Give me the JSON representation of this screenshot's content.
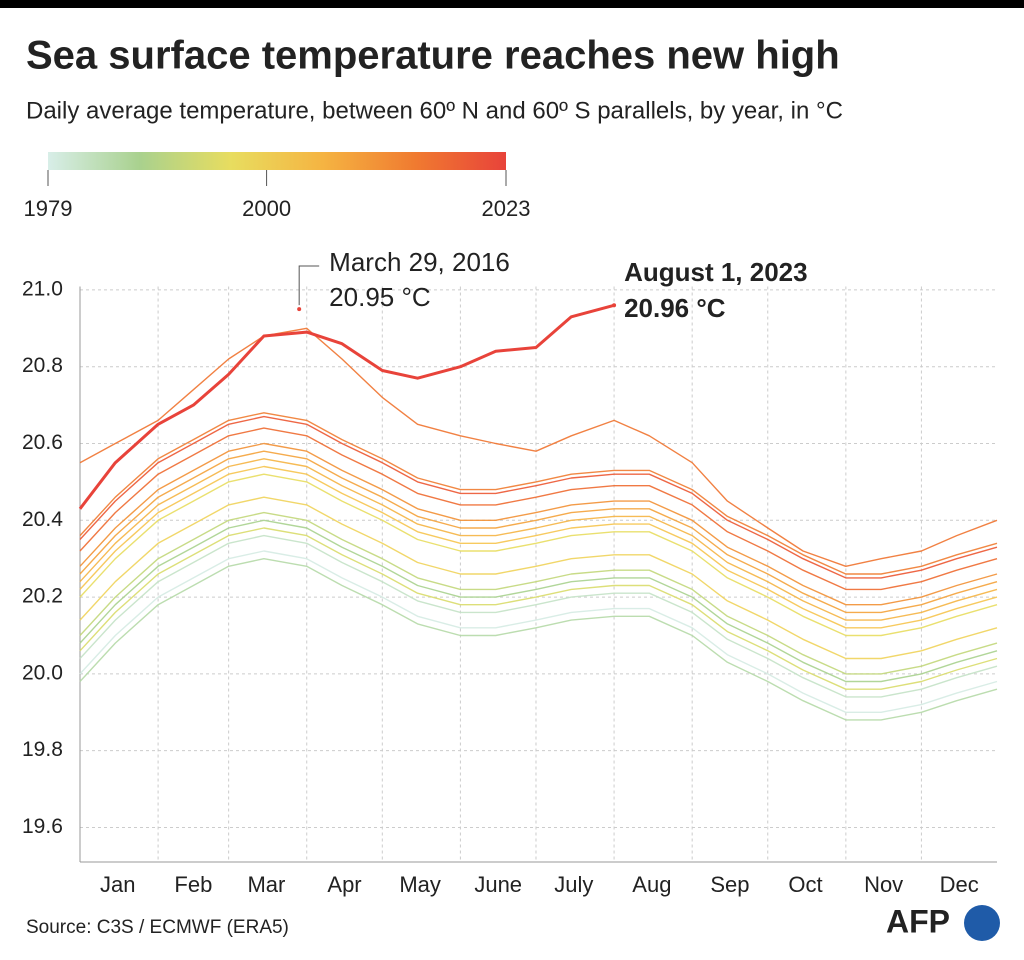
{
  "chart_data": {
    "type": "line",
    "title": "Sea surface temperature reaches new high",
    "subtitle": "Daily average temperature, between 60º N and 60º S parallels, by year, in °C",
    "source": "Source: C3S / ECMWF (ERA5)",
    "logo": "AFP",
    "colorbar": {
      "lim": [
        1979,
        2023
      ],
      "ticks": [
        1979,
        2000,
        2023
      ],
      "colors": [
        "#d8eee8",
        "#a9d18e",
        "#e8dd5f",
        "#f5b442",
        "#f07b30",
        "#e8433a"
      ]
    },
    "xlim": [
      1,
      365
    ],
    "ylim": [
      19.51,
      21.1
    ],
    "yticks": [
      {
        "value": 19.6,
        "label": "19.6"
      },
      {
        "value": 19.8,
        "label": "19.8"
      },
      {
        "value": 20.0,
        "label": "20.0"
      },
      {
        "value": 20.2,
        "label": "20.2"
      },
      {
        "value": 20.4,
        "label": "20.4"
      },
      {
        "value": 20.6,
        "label": "20.6"
      },
      {
        "value": 20.8,
        "label": "20.8"
      },
      {
        "value": 21.0,
        "label": "21.0"
      }
    ],
    "xgrid": [
      32,
      60,
      91,
      121,
      152,
      182,
      213,
      244,
      274,
      305,
      335
    ],
    "month_labels": [
      {
        "value": 16,
        "label": "Jan"
      },
      {
        "value": 46,
        "label": "Feb"
      },
      {
        "value": 75,
        "label": "Mar"
      },
      {
        "value": 106,
        "label": "Apr"
      },
      {
        "value": 136,
        "label": "May"
      },
      {
        "value": 167,
        "label": "June"
      },
      {
        "value": 197,
        "label": "July"
      },
      {
        "value": 228,
        "label": "Aug"
      },
      {
        "value": 259,
        "label": "Sep"
      },
      {
        "value": 289,
        "label": "Oct"
      },
      {
        "value": 320,
        "label": "Nov"
      },
      {
        "value": 350,
        "label": "Dec"
      }
    ],
    "grid": true,
    "x": [
      1,
      15,
      32,
      46,
      60,
      74,
      91,
      105,
      121,
      135,
      152,
      166,
      182,
      196,
      213,
      227,
      244,
      258,
      274,
      288,
      305,
      319,
      335,
      349,
      365
    ],
    "series": [
      {
        "color": "#d5ebe3",
        "values": [
          20.0,
          20.1,
          20.2,
          20.25,
          20.3,
          20.32,
          20.3,
          20.25,
          20.2,
          20.15,
          20.12,
          20.12,
          20.14,
          20.16,
          20.17,
          20.17,
          20.12,
          20.05,
          20.0,
          19.95,
          19.9,
          19.9,
          19.92,
          19.95,
          19.98
        ]
      },
      {
        "color": "#c4e2c6",
        "values": [
          20.04,
          20.14,
          20.24,
          20.29,
          20.34,
          20.36,
          20.34,
          20.29,
          20.24,
          20.19,
          20.16,
          20.16,
          20.18,
          20.2,
          20.21,
          20.21,
          20.16,
          20.09,
          20.04,
          19.99,
          19.94,
          19.94,
          19.96,
          19.99,
          20.02
        ]
      },
      {
        "color": "#b5d9a7",
        "values": [
          19.98,
          20.08,
          20.18,
          20.23,
          20.28,
          20.3,
          20.28,
          20.23,
          20.18,
          20.13,
          20.1,
          20.1,
          20.12,
          20.14,
          20.15,
          20.15,
          20.1,
          20.03,
          19.98,
          19.93,
          19.88,
          19.88,
          19.9,
          19.93,
          19.96
        ]
      },
      {
        "color": "#a9d18e",
        "values": [
          20.08,
          20.18,
          20.28,
          20.33,
          20.38,
          20.4,
          20.38,
          20.33,
          20.28,
          20.23,
          20.2,
          20.2,
          20.22,
          20.24,
          20.25,
          20.25,
          20.2,
          20.13,
          20.08,
          20.03,
          19.98,
          19.98,
          20.0,
          20.03,
          20.06
        ]
      },
      {
        "color": "#c2d77a",
        "values": [
          20.1,
          20.2,
          20.3,
          20.35,
          20.4,
          20.42,
          20.4,
          20.35,
          20.3,
          20.25,
          20.22,
          20.22,
          20.24,
          20.26,
          20.27,
          20.27,
          20.22,
          20.15,
          20.1,
          20.05,
          20.0,
          20.0,
          20.02,
          20.05,
          20.08
        ]
      },
      {
        "color": "#d9dc6a",
        "values": [
          20.06,
          20.16,
          20.26,
          20.31,
          20.36,
          20.38,
          20.36,
          20.31,
          20.26,
          20.21,
          20.18,
          20.18,
          20.2,
          20.22,
          20.23,
          20.23,
          20.18,
          20.11,
          20.06,
          20.01,
          19.96,
          19.96,
          19.98,
          20.01,
          20.04
        ]
      },
      {
        "color": "#e8dd5f",
        "values": [
          20.2,
          20.3,
          20.4,
          20.45,
          20.5,
          20.52,
          20.5,
          20.45,
          20.4,
          20.35,
          20.32,
          20.32,
          20.34,
          20.36,
          20.37,
          20.37,
          20.32,
          20.25,
          20.2,
          20.15,
          20.1,
          20.1,
          20.12,
          20.15,
          20.18
        ]
      },
      {
        "color": "#f0d35a",
        "values": [
          20.14,
          20.24,
          20.34,
          20.39,
          20.44,
          20.46,
          20.44,
          20.39,
          20.34,
          20.29,
          20.26,
          20.26,
          20.28,
          20.3,
          20.31,
          20.31,
          20.26,
          20.19,
          20.14,
          20.09,
          20.04,
          20.04,
          20.06,
          20.09,
          20.12
        ]
      },
      {
        "color": "#f6c44e",
        "values": [
          20.22,
          20.32,
          20.42,
          20.47,
          20.52,
          20.54,
          20.52,
          20.47,
          20.42,
          20.37,
          20.34,
          20.34,
          20.36,
          20.38,
          20.39,
          20.39,
          20.34,
          20.27,
          20.22,
          20.17,
          20.12,
          20.12,
          20.14,
          20.17,
          20.2
        ]
      },
      {
        "color": "#f5b442",
        "values": [
          20.24,
          20.34,
          20.44,
          20.49,
          20.54,
          20.56,
          20.54,
          20.49,
          20.44,
          20.39,
          20.36,
          20.36,
          20.38,
          20.4,
          20.41,
          20.41,
          20.36,
          20.29,
          20.24,
          20.19,
          20.14,
          20.14,
          20.16,
          20.19,
          20.22
        ]
      },
      {
        "color": "#f4a23a",
        "values": [
          20.26,
          20.36,
          20.46,
          20.51,
          20.56,
          20.58,
          20.56,
          20.51,
          20.46,
          20.41,
          20.38,
          20.38,
          20.4,
          20.42,
          20.43,
          20.43,
          20.38,
          20.31,
          20.26,
          20.21,
          20.16,
          20.16,
          20.18,
          20.21,
          20.24
        ]
      },
      {
        "color": "#f29034",
        "values": [
          20.28,
          20.38,
          20.48,
          20.53,
          20.58,
          20.6,
          20.58,
          20.53,
          20.48,
          20.43,
          20.4,
          20.4,
          20.42,
          20.44,
          20.45,
          20.45,
          20.4,
          20.33,
          20.28,
          20.23,
          20.18,
          20.18,
          20.2,
          20.23,
          20.26
        ]
      },
      {
        "color": "#f07b30",
        "values": [
          20.36,
          20.46,
          20.56,
          20.61,
          20.66,
          20.68,
          20.66,
          20.61,
          20.56,
          20.51,
          20.48,
          20.48,
          20.5,
          20.52,
          20.53,
          20.53,
          20.48,
          20.41,
          20.36,
          20.31,
          20.26,
          20.26,
          20.28,
          20.31,
          20.34
        ]
      },
      {
        "color": "#ef732f",
        "values": [
          20.55,
          20.6,
          20.66,
          20.74,
          20.82,
          20.88,
          20.9,
          20.82,
          20.72,
          20.65,
          20.62,
          20.6,
          20.58,
          20.62,
          20.66,
          20.62,
          20.55,
          20.45,
          20.38,
          20.32,
          20.28,
          20.3,
          20.32,
          20.36,
          20.4
        ]
      },
      {
        "color": "#ee6a30",
        "values": [
          20.32,
          20.42,
          20.52,
          20.57,
          20.62,
          20.64,
          20.62,
          20.57,
          20.52,
          20.47,
          20.44,
          20.44,
          20.46,
          20.48,
          20.49,
          20.49,
          20.44,
          20.37,
          20.32,
          20.27,
          20.22,
          20.22,
          20.24,
          20.27,
          20.3
        ]
      },
      {
        "color": "#ec5632",
        "values": [
          20.35,
          20.45,
          20.55,
          20.6,
          20.65,
          20.67,
          20.65,
          20.6,
          20.55,
          20.5,
          20.47,
          20.47,
          20.49,
          20.51,
          20.52,
          20.52,
          20.47,
          20.4,
          20.35,
          20.3,
          20.25,
          20.25,
          20.27,
          20.3,
          20.33
        ]
      },
      {
        "color": "#e8433a",
        "width": 3,
        "values": [
          20.43,
          20.55,
          20.65,
          20.7,
          20.78,
          20.88,
          20.89,
          20.86,
          20.79,
          20.77,
          20.8,
          20.84,
          20.85,
          20.93,
          20.96,
          null,
          null,
          null,
          null,
          null,
          null,
          null,
          null,
          null,
          null
        ]
      }
    ],
    "annotations": [
      {
        "x": 88,
        "y": 20.95,
        "lines": [
          "March 29, 2016",
          "20.95 °C"
        ],
        "bold": false
      },
      {
        "x": 213,
        "y": 20.96,
        "lines": [
          "August 1, 2023",
          "20.96 °C"
        ],
        "bold": true
      }
    ]
  }
}
